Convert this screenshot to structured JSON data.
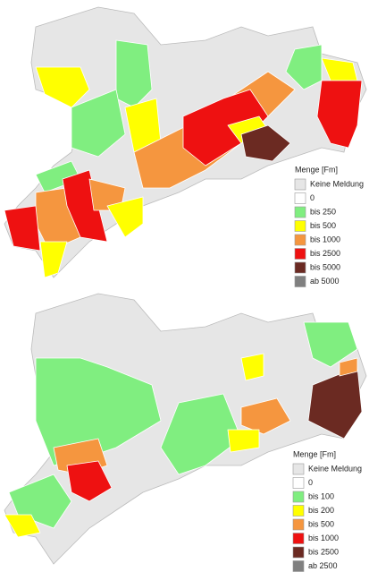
{
  "maps": [
    {
      "legend": {
        "title": "Menge [Fm]",
        "items": [
          {
            "label": "Keine Meldung",
            "color": "#e6e6e6"
          },
          {
            "label": "0",
            "color": "#ffffff"
          },
          {
            "label": "bis 250",
            "color": "#80ee80"
          },
          {
            "label": "bis 500",
            "color": "#ffff00"
          },
          {
            "label": "bis 1000",
            "color": "#f5963f"
          },
          {
            "label": "bis 2500",
            "color": "#ee1111"
          },
          {
            "label": "bis 5000",
            "color": "#6b2a22"
          },
          {
            "label": "ab 5000",
            "color": "#808080"
          }
        ]
      }
    },
    {
      "legend": {
        "title": "Menge [Fm]",
        "items": [
          {
            "label": "Keine Meldung",
            "color": "#e6e6e6"
          },
          {
            "label": "0",
            "color": "#ffffff"
          },
          {
            "label": "bis 100",
            "color": "#80ee80"
          },
          {
            "label": "bis 200",
            "color": "#ffff00"
          },
          {
            "label": "bis 500",
            "color": "#f5963f"
          },
          {
            "label": "bis 1000",
            "color": "#ee1111"
          },
          {
            "label": "bis 2500",
            "color": "#6b2a22"
          },
          {
            "label": "ab 2500",
            "color": "#808080"
          }
        ]
      }
    }
  ]
}
